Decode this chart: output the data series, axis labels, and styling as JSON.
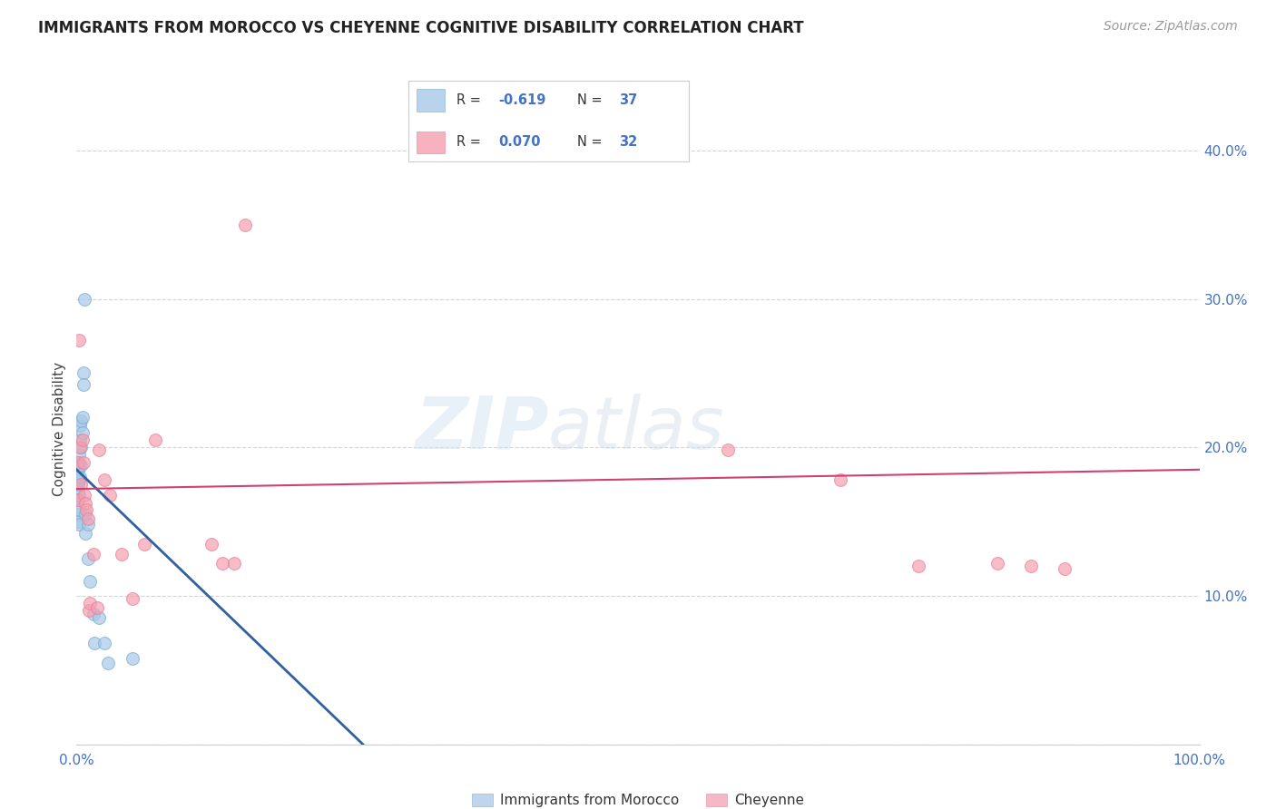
{
  "title": "IMMIGRANTS FROM MOROCCO VS CHEYENNE COGNITIVE DISABILITY CORRELATION CHART",
  "source": "Source: ZipAtlas.com",
  "ylabel": "Cognitive Disability",
  "yticks": [
    0.0,
    0.1,
    0.2,
    0.3,
    0.4
  ],
  "ytick_labels": [
    "",
    "10.0%",
    "20.0%",
    "30.0%",
    "40.0%"
  ],
  "xlim": [
    0.0,
    1.0
  ],
  "ylim": [
    0.0,
    0.425
  ],
  "legend_label1": "Immigrants from Morocco",
  "legend_label2": "Cheyenne",
  "r1": "-0.619",
  "n1": "37",
  "r2": "0.070",
  "n2": "32",
  "blue_color": "#a8c8e8",
  "pink_color": "#f4a0b0",
  "blue_edge_color": "#7aaed0",
  "pink_edge_color": "#e8809a",
  "blue_line_color": "#3060a0",
  "pink_line_color": "#d04070",
  "blue_x": [
    0.001,
    0.001,
    0.001,
    0.001,
    0.001,
    0.001,
    0.001,
    0.001,
    0.001,
    0.002,
    0.002,
    0.002,
    0.002,
    0.002,
    0.003,
    0.003,
    0.003,
    0.003,
    0.004,
    0.004,
    0.004,
    0.005,
    0.005,
    0.006,
    0.006,
    0.007,
    0.008,
    0.008,
    0.01,
    0.01,
    0.012,
    0.015,
    0.016,
    0.02,
    0.025,
    0.028,
    0.05
  ],
  "blue_y": [
    0.19,
    0.185,
    0.18,
    0.175,
    0.17,
    0.165,
    0.16,
    0.155,
    0.15,
    0.195,
    0.188,
    0.178,
    0.168,
    0.148,
    0.215,
    0.205,
    0.18,
    0.158,
    0.218,
    0.2,
    0.188,
    0.22,
    0.21,
    0.25,
    0.242,
    0.3,
    0.155,
    0.142,
    0.148,
    0.125,
    0.11,
    0.088,
    0.068,
    0.085,
    0.068,
    0.055,
    0.058
  ],
  "pink_x": [
    0.001,
    0.001,
    0.002,
    0.003,
    0.004,
    0.005,
    0.006,
    0.007,
    0.008,
    0.009,
    0.01,
    0.011,
    0.012,
    0.015,
    0.018,
    0.02,
    0.025,
    0.03,
    0.04,
    0.05,
    0.06,
    0.07,
    0.12,
    0.13,
    0.14,
    0.15,
    0.58,
    0.68,
    0.75,
    0.82,
    0.85,
    0.88
  ],
  "pink_y": [
    0.19,
    0.165,
    0.272,
    0.2,
    0.175,
    0.205,
    0.19,
    0.168,
    0.162,
    0.158,
    0.152,
    0.09,
    0.095,
    0.128,
    0.092,
    0.198,
    0.178,
    0.168,
    0.128,
    0.098,
    0.135,
    0.205,
    0.135,
    0.122,
    0.122,
    0.35,
    0.198,
    0.178,
    0.12,
    0.122,
    0.12,
    0.118
  ],
  "watermark_zip": "ZIP",
  "watermark_atlas": "atlas",
  "background_color": "#ffffff"
}
